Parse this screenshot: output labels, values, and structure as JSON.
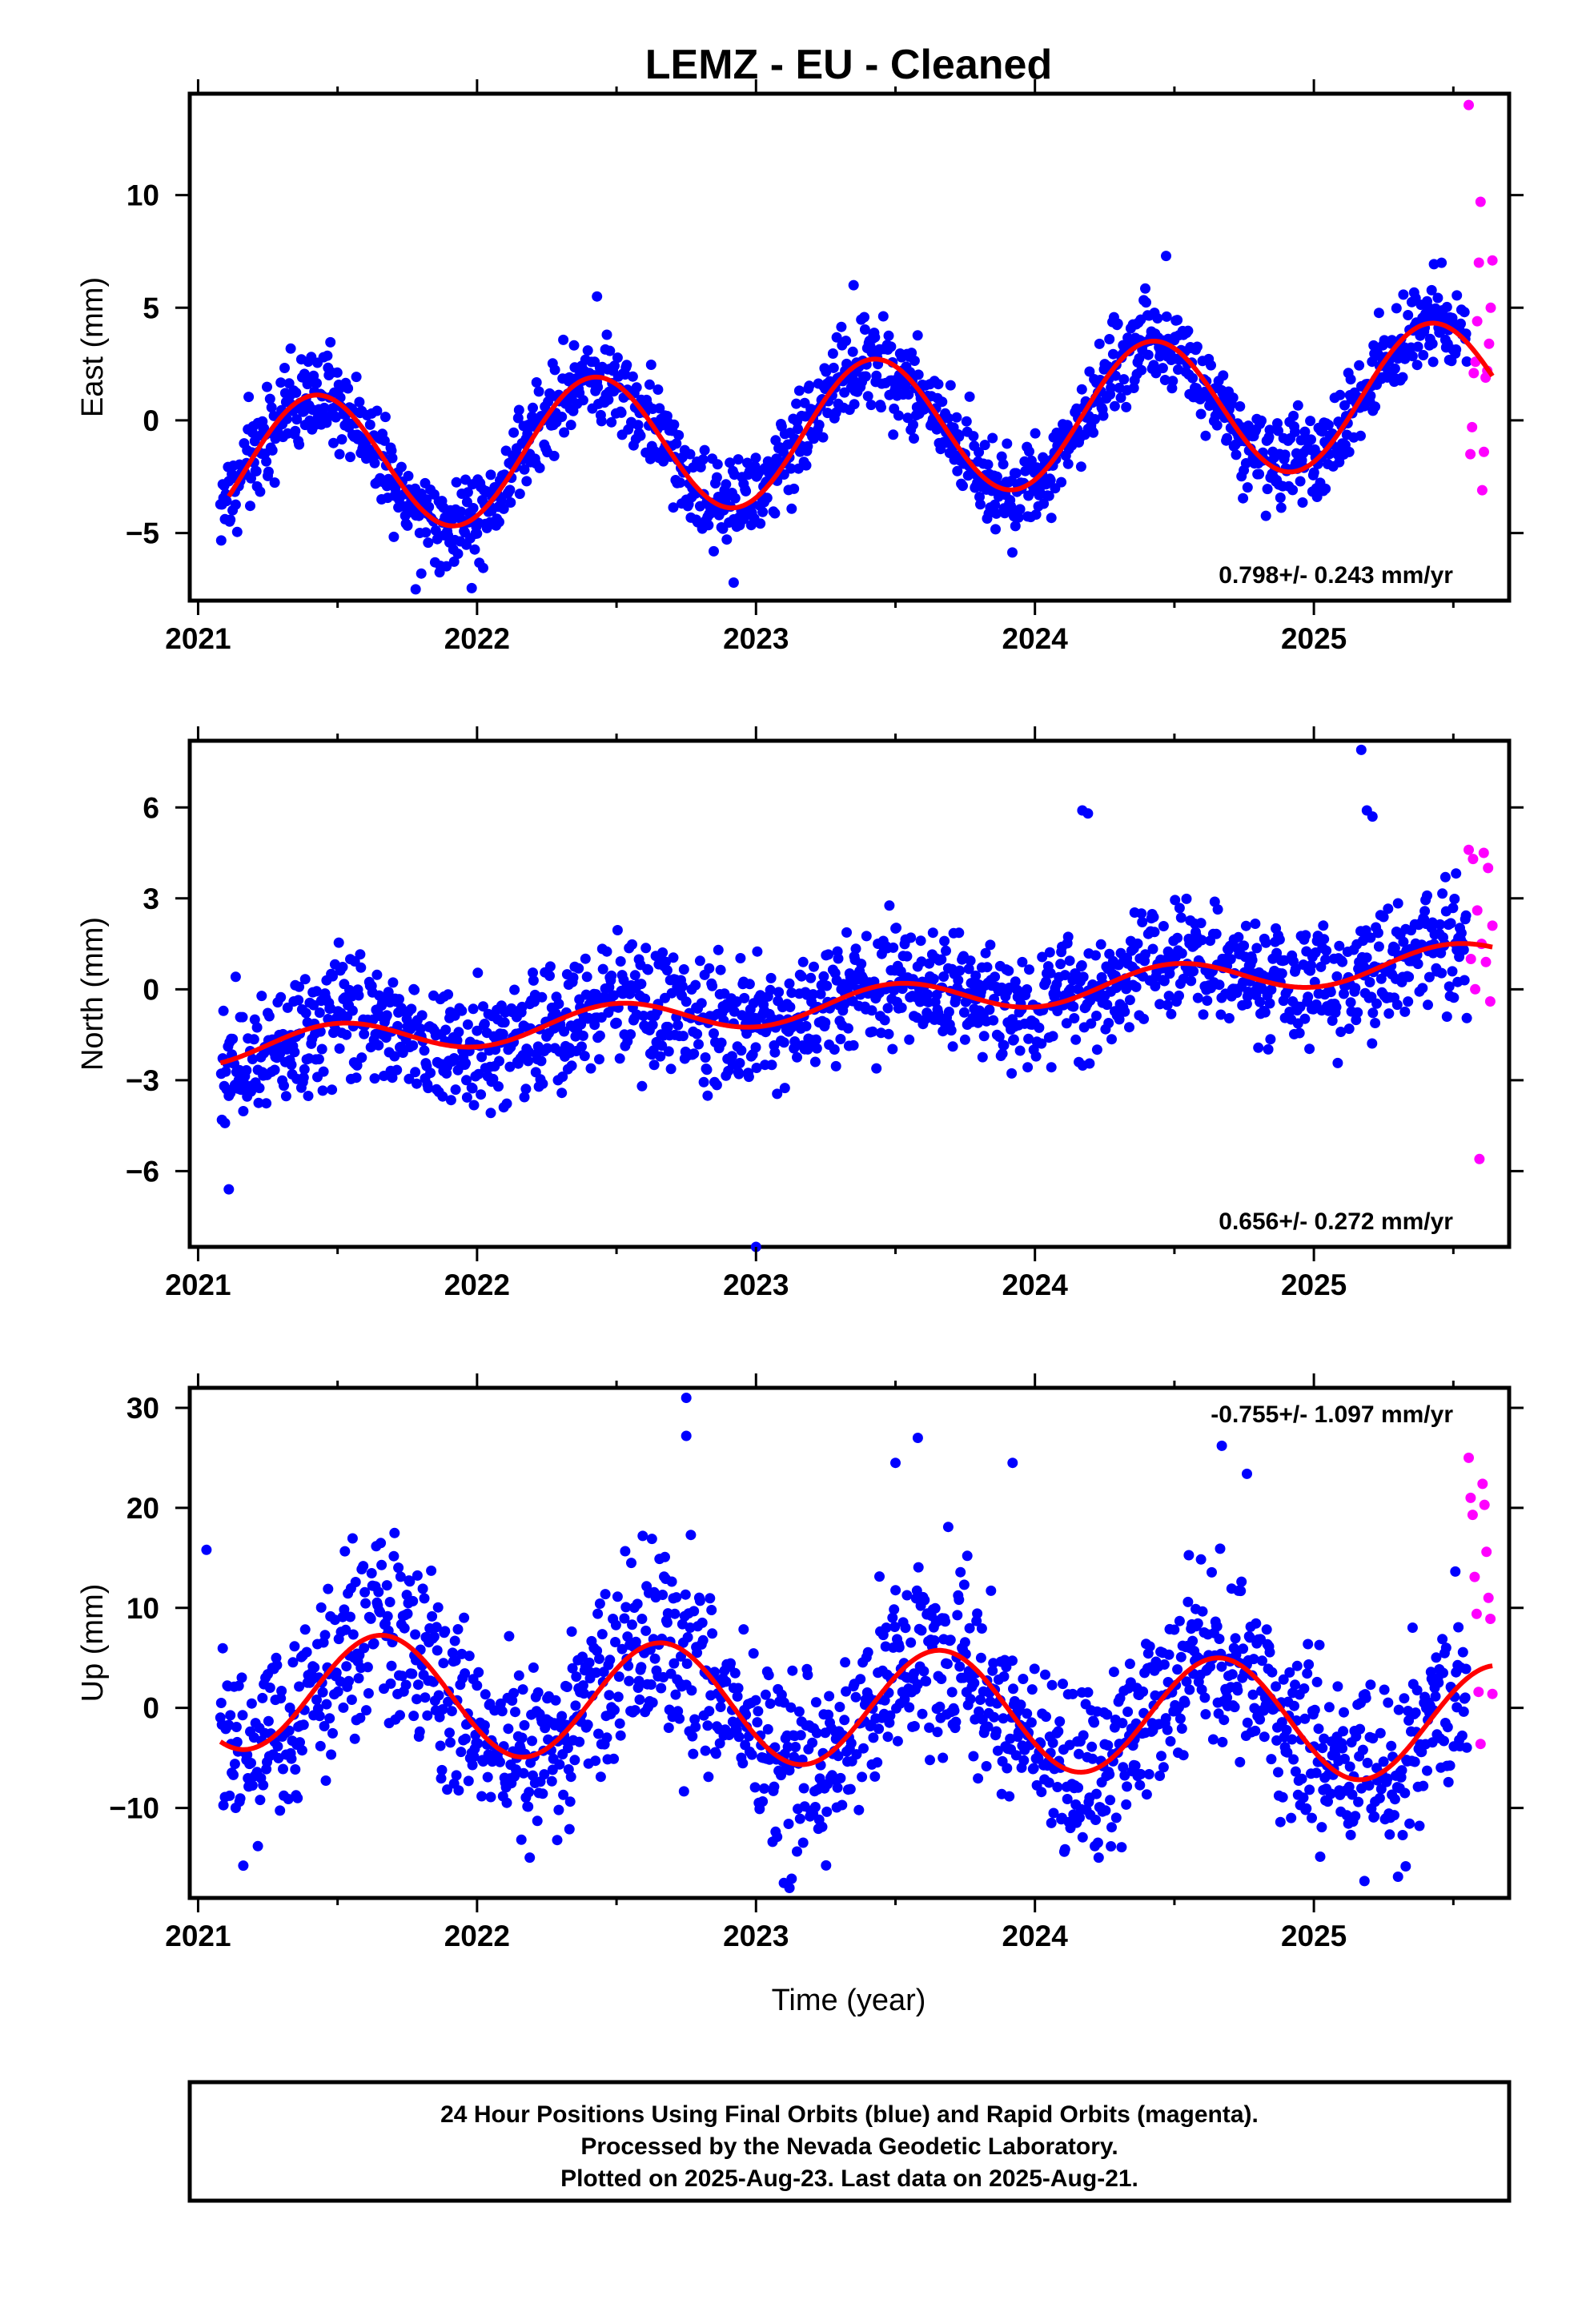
{
  "title": "LEMZ  - EU - Cleaned",
  "colors": {
    "final": "#0000ff",
    "rapid": "#ff00ff",
    "model": "#ff0000",
    "frame": "#000000"
  },
  "x_label": "Time (year)",
  "footer": {
    "line1": "24 Hour Positions Using Final Orbits (blue) and Rapid Orbits (magenta).",
    "line2": "Processed by the Nevada Geodetic Laboratory.",
    "line3": "Plotted on 2025-Aug-23. Last data on 2025-Aug-21."
  },
  "chart_data": [
    {
      "type": "scatter",
      "panel": "east",
      "ylabel": "East (mm)",
      "rate_label": "0.798+/- 0.243 mm/yr",
      "rate_position": "bottom-right",
      "xlim": [
        2020.97,
        2025.7
      ],
      "ylim": [
        -8,
        14.5
      ],
      "xticks": [
        2021,
        2022,
        2023,
        2024,
        2025
      ],
      "xtick_labels": [
        "2021",
        "2022",
        "2023",
        "2024",
        "2025"
      ],
      "yticks": [
        -5,
        0,
        5,
        10
      ],
      "ytick_labels": [
        "−5",
        "0",
        "5",
        "10"
      ],
      "data_start": 2021.08,
      "final_end": 2025.55,
      "last_data": 2025.64,
      "model": {
        "offset": -2.25,
        "rate": 0.798,
        "amplitude": 3.1,
        "peak_phase": 0.42
      },
      "model_curve_start": 2021.11,
      "noise_sigma": 1.0,
      "rapid_values": [
        14.0,
        9.7,
        7.1,
        7.0,
        5.0,
        4.4,
        3.4,
        2.6,
        2.2,
        2.1,
        1.9,
        -0.3,
        -1.4,
        -1.5,
        -3.1
      ],
      "outliers": [
        [
          2021.78,
          -7.5
        ],
        [
          2021.8,
          -6.8
        ],
        [
          2022.92,
          -7.2
        ],
        [
          2024.47,
          7.3
        ],
        [
          2022.43,
          5.5
        ],
        [
          2023.35,
          6.0
        ]
      ]
    },
    {
      "type": "scatter",
      "panel": "north",
      "ylabel": "North (mm)",
      "rate_label": "0.656+/- 0.272 mm/yr",
      "rate_position": "bottom-right",
      "xlim": [
        2020.97,
        2025.7
      ],
      "ylim": [
        -8.5,
        8.2
      ],
      "xticks": [
        2021,
        2022,
        2023,
        2024,
        2025
      ],
      "xtick_labels": [
        "2021",
        "2022",
        "2023",
        "2024",
        "2025"
      ],
      "yticks": [
        -6,
        -3,
        0,
        3,
        6
      ],
      "ytick_labels": [
        "−6",
        "−3",
        "0",
        "3",
        "6"
      ],
      "data_start": 2021.08,
      "final_end": 2025.55,
      "last_data": 2025.64,
      "model": {
        "offset": -1.95,
        "rate": 0.656,
        "amplitude": 0.55,
        "peak_phase": 0.5
      },
      "model_curve_start": 2021.08,
      "noise_sigma": 1.0,
      "rapid_values": [
        4.6,
        4.5,
        4.3,
        4.0,
        2.6,
        2.1,
        1.5,
        1.0,
        0.9,
        0.0,
        -0.4,
        -5.6
      ],
      "outliers": [
        [
          2023.0,
          -8.5
        ],
        [
          2024.17,
          5.9
        ],
        [
          2024.19,
          5.8
        ],
        [
          2025.17,
          7.9
        ],
        [
          2025.19,
          5.9
        ],
        [
          2025.21,
          5.7
        ],
        [
          2021.11,
          -6.6
        ]
      ]
    },
    {
      "type": "scatter",
      "panel": "up",
      "ylabel": "Up (mm)",
      "rate_label": "-0.755+/- 1.097 mm/yr",
      "rate_position": "top-right",
      "xlim": [
        2020.97,
        2025.7
      ],
      "ylim": [
        -19,
        32
      ],
      "xticks": [
        2021,
        2022,
        2023,
        2024,
        2025
      ],
      "xtick_labels": [
        "2021",
        "2022",
        "2023",
        "2024",
        "2025"
      ],
      "yticks": [
        -10,
        0,
        10,
        20,
        30
      ],
      "ytick_labels": [
        "−10",
        "0",
        "10",
        "20",
        "30"
      ],
      "data_start": 2021.08,
      "final_end": 2025.55,
      "last_data": 2025.64,
      "model": {
        "offset": 1.8,
        "rate": -0.755,
        "amplitude": 5.9,
        "peak_phase": 0.66
      },
      "model_curve_start": 2021.08,
      "noise_sigma": 4.5,
      "rapid_values": [
        25.0,
        22.4,
        21.0,
        20.3,
        19.3,
        15.6,
        13.1,
        11.0,
        9.4,
        8.9,
        1.6,
        1.4,
        -3.6
      ],
      "outliers": [
        [
          2022.75,
          31.0
        ],
        [
          2022.75,
          27.2
        ],
        [
          2023.58,
          27.0
        ],
        [
          2024.67,
          26.2
        ],
        [
          2023.1,
          -17.5
        ],
        [
          2023.12,
          -18.0
        ],
        [
          2023.5,
          24.5
        ],
        [
          2023.92,
          24.5
        ],
        [
          2024.76,
          23.4
        ],
        [
          2021.03,
          15.8
        ]
      ]
    }
  ]
}
